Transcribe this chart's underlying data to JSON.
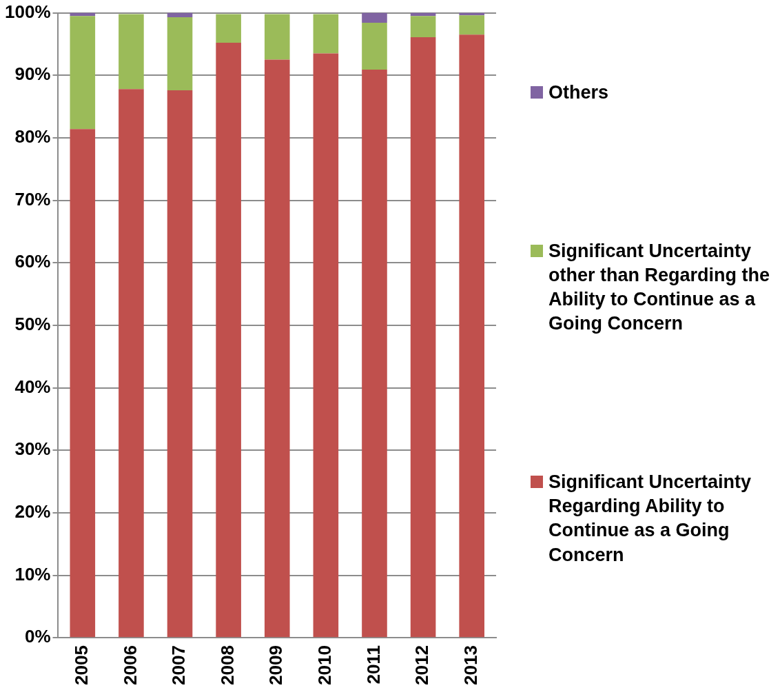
{
  "chart_data": {
    "type": "bar",
    "stacked": true,
    "categories": [
      "2005",
      "2006",
      "2007",
      "2008",
      "2009",
      "2010",
      "2011",
      "2012",
      "2013"
    ],
    "series": [
      {
        "name": "Significant Uncertainty Regarding Ability to Continue as a Going Concern",
        "color": "#c0504d",
        "values": [
          81.4,
          87.8,
          87.6,
          95.2,
          92.5,
          93.5,
          90.9,
          96.1,
          96.5
        ]
      },
      {
        "name": "Significant Uncertainty other than Regarding the Ability to Continue as a Going Concern",
        "color": "#9bbb59",
        "values": [
          18.1,
          12.0,
          11.7,
          4.6,
          7.3,
          6.3,
          7.5,
          3.4,
          3.1
        ]
      },
      {
        "name": "Others",
        "color": "#8064a2",
        "values": [
          0.5,
          null,
          0.7,
          null,
          null,
          null,
          1.6,
          0.5,
          0.4
        ]
      }
    ],
    "ylim": [
      0,
      100
    ],
    "yticks": [
      {
        "value": 0,
        "label": "0%"
      },
      {
        "value": 10,
        "label": "10%"
      },
      {
        "value": 20,
        "label": "20%"
      },
      {
        "value": 30,
        "label": "30%"
      },
      {
        "value": 40,
        "label": "40%"
      },
      {
        "value": 50,
        "label": "50%"
      },
      {
        "value": 60,
        "label": "60%"
      },
      {
        "value": 70,
        "label": "70%"
      },
      {
        "value": 80,
        "label": "80%"
      },
      {
        "value": 90,
        "label": "90%"
      },
      {
        "value": 100,
        "label": "100%"
      }
    ],
    "grid": "y",
    "legend": "right"
  }
}
